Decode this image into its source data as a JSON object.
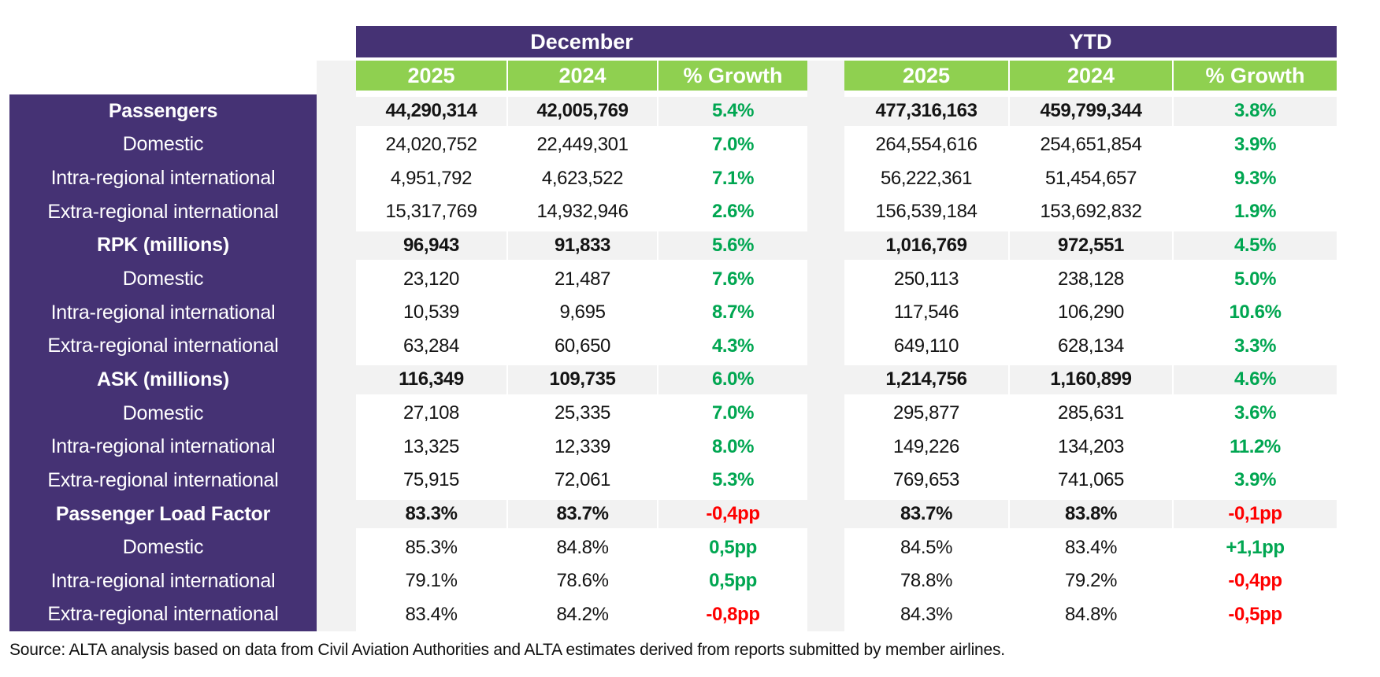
{
  "chart_data": {
    "type": "table",
    "column_groups": [
      "December",
      "YTD"
    ],
    "subheaders": [
      "2025",
      "2024",
      "% Growth"
    ],
    "rows": [
      {
        "label": "Passengers",
        "bold": true,
        "values": [
          "44,290,314",
          "42,005,769",
          "5.4%",
          "477,316,163",
          "459,799,344",
          "3.8%"
        ],
        "growth_colors": [
          "green",
          "green"
        ]
      },
      {
        "label": "Domestic",
        "bold": false,
        "values": [
          "24,020,752",
          "22,449,301",
          "7.0%",
          "264,554,616",
          "254,651,854",
          "3.9%"
        ],
        "growth_colors": [
          "green",
          "green"
        ]
      },
      {
        "label": "Intra-regional international",
        "bold": false,
        "values": [
          "4,951,792",
          "4,623,522",
          "7.1%",
          "56,222,361",
          "51,454,657",
          "9.3%"
        ],
        "growth_colors": [
          "green",
          "green"
        ]
      },
      {
        "label": "Extra-regional international",
        "bold": false,
        "values": [
          "15,317,769",
          "14,932,946",
          "2.6%",
          "156,539,184",
          "153,692,832",
          "1.9%"
        ],
        "growth_colors": [
          "green",
          "green"
        ]
      },
      {
        "label": "RPK (millions)",
        "bold": true,
        "values": [
          "96,943",
          "91,833",
          "5.6%",
          "1,016,769",
          "972,551",
          "4.5%"
        ],
        "growth_colors": [
          "green",
          "green"
        ]
      },
      {
        "label": "Domestic",
        "bold": false,
        "values": [
          "23,120",
          "21,487",
          "7.6%",
          "250,113",
          "238,128",
          "5.0%"
        ],
        "growth_colors": [
          "green",
          "green"
        ]
      },
      {
        "label": "Intra-regional international",
        "bold": false,
        "values": [
          "10,539",
          "9,695",
          "8.7%",
          "117,546",
          "106,290",
          "10.6%"
        ],
        "growth_colors": [
          "green",
          "green"
        ]
      },
      {
        "label": "Extra-regional international",
        "bold": false,
        "values": [
          "63,284",
          "60,650",
          "4.3%",
          "649,110",
          "628,134",
          "3.3%"
        ],
        "growth_colors": [
          "green",
          "green"
        ]
      },
      {
        "label": "ASK (millions)",
        "bold": true,
        "values": [
          "116,349",
          "109,735",
          "6.0%",
          "1,214,756",
          "1,160,899",
          "4.6%"
        ],
        "growth_colors": [
          "green",
          "green"
        ]
      },
      {
        "label": "Domestic",
        "bold": false,
        "values": [
          "27,108",
          "25,335",
          "7.0%",
          "295,877",
          "285,631",
          "3.6%"
        ],
        "growth_colors": [
          "green",
          "green"
        ]
      },
      {
        "label": "Intra-regional international",
        "bold": false,
        "values": [
          "13,325",
          "12,339",
          "8.0%",
          "149,226",
          "134,203",
          "11.2%"
        ],
        "growth_colors": [
          "green",
          "green"
        ]
      },
      {
        "label": "Extra-regional international",
        "bold": false,
        "values": [
          "75,915",
          "72,061",
          "5.3%",
          "769,653",
          "741,065",
          "3.9%"
        ],
        "growth_colors": [
          "green",
          "green"
        ]
      },
      {
        "label": "Passenger Load Factor",
        "bold": true,
        "values": [
          "83.3%",
          "83.7%",
          "-0,4pp",
          "83.7%",
          "83.8%",
          "-0,1pp"
        ],
        "growth_colors": [
          "red",
          "red"
        ]
      },
      {
        "label": "Domestic",
        "bold": false,
        "values": [
          "85.3%",
          "84.8%",
          "0,5pp",
          "84.5%",
          "83.4%",
          "+1,1pp"
        ],
        "growth_colors": [
          "green",
          "green"
        ]
      },
      {
        "label": "Intra-regional international",
        "bold": false,
        "values": [
          "79.1%",
          "78.6%",
          "0,5pp",
          "78.8%",
          "79.2%",
          "-0,4pp"
        ],
        "growth_colors": [
          "green",
          "red"
        ]
      },
      {
        "label": "Extra-regional international",
        "bold": false,
        "values": [
          "83.4%",
          "84.2%",
          "-0,8pp",
          "84.3%",
          "84.8%",
          "-0,5pp"
        ],
        "growth_colors": [
          "red",
          "red"
        ]
      }
    ],
    "source": "Source: ALTA analysis based on data from Civil Aviation Authorities and ALTA estimates derived from reports submitted by member airlines.",
    "colors": {
      "header_purple": "#453274",
      "header_green": "#8fd050",
      "positive_green": "#00a651",
      "negative_red": "#fe0000",
      "band_gray": "#f2f2f2",
      "value_black": "#141414"
    }
  }
}
